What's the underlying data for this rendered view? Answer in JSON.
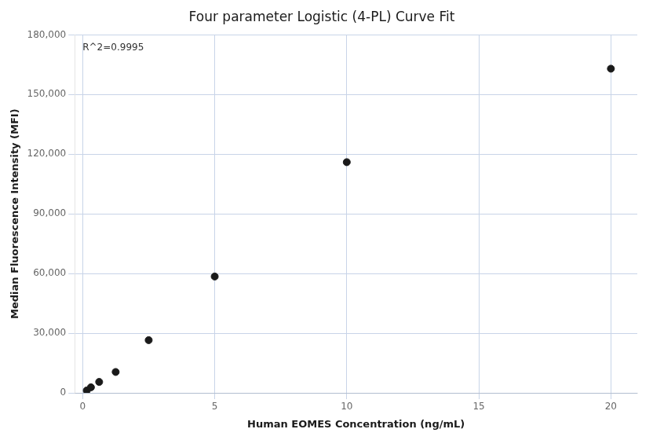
{
  "chart_data": {
    "type": "scatter",
    "title": "Four parameter Logistic (4-PL) Curve Fit",
    "xlabel": "Human EOMES Concentration (ng/mL)",
    "ylabel": "Median Fluorescence Intensity (MFI)",
    "annotation": "R^2=0.9995",
    "x": [
      0.156,
      0.313,
      0.625,
      1.25,
      2.5,
      5.0,
      10.0,
      20.0
    ],
    "values": [
      1200,
      2800,
      5500,
      10500,
      26500,
      58500,
      116000,
      163000
    ],
    "color": "#1a1a1a",
    "xlim": [
      -0.3,
      21
    ],
    "ylim": [
      0,
      180000
    ],
    "xticks": [
      0,
      5,
      10,
      15,
      20
    ],
    "yticks": [
      0,
      {
        "value": 30000,
        "label": "30,000"
      },
      {
        "value": 60000,
        "label": "60,000"
      },
      {
        "value": 90000,
        "label": "90,000"
      },
      {
        "value": 120000,
        "label": "120,000"
      },
      {
        "value": 150000,
        "label": "150,000"
      },
      {
        "value": 180000,
        "label": "180,000"
      }
    ],
    "grid": true
  }
}
